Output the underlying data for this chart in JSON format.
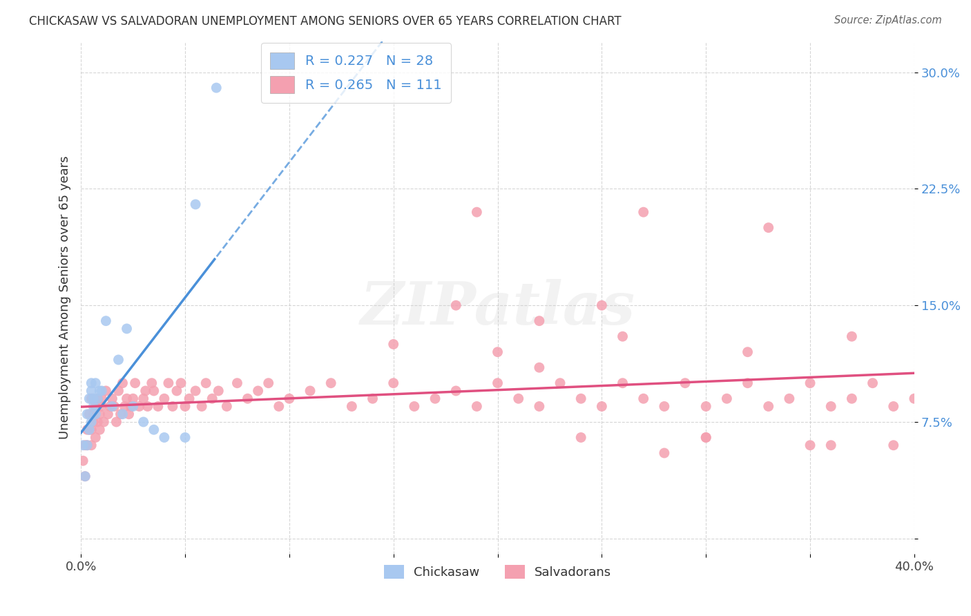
{
  "title": "CHICKASAW VS SALVADORAN UNEMPLOYMENT AMONG SENIORS OVER 65 YEARS CORRELATION CHART",
  "source": "Source: ZipAtlas.com",
  "ylabel": "Unemployment Among Seniors over 65 years",
  "xlim": [
    0.0,
    0.4
  ],
  "ylim": [
    -0.01,
    0.32
  ],
  "legend_label1": "R = 0.227   N = 28",
  "legend_label2": "R = 0.265   N = 111",
  "legend_bottom_label1": "Chickasaw",
  "legend_bottom_label2": "Salvadorans",
  "color_blue": "#a8c8f0",
  "color_pink": "#f4a0b0",
  "line_color_blue": "#4a90d9",
  "line_color_pink": "#e05080",
  "watermark": "ZIPatlas",
  "background_color": "#ffffff",
  "grid_color": "#cccccc",
  "yticks": [
    0.0,
    0.075,
    0.15,
    0.225,
    0.3
  ],
  "ytick_labels": [
    "",
    "7.5%",
    "15.0%",
    "22.5%",
    "30.0%"
  ],
  "xtick_positions": [
    0.0,
    0.05,
    0.1,
    0.15,
    0.2,
    0.25,
    0.3,
    0.35,
    0.4
  ],
  "xtick_labels": [
    "0.0%",
    "",
    "",
    "",
    "",
    "",
    "",
    "",
    "40.0%"
  ],
  "chickasaw_x": [
    0.001,
    0.002,
    0.003,
    0.003,
    0.004,
    0.004,
    0.005,
    0.005,
    0.005,
    0.006,
    0.006,
    0.007,
    0.007,
    0.008,
    0.009,
    0.01,
    0.012,
    0.015,
    0.018,
    0.02,
    0.022,
    0.025,
    0.03,
    0.035,
    0.04,
    0.05,
    0.055,
    0.065
  ],
  "chickasaw_y": [
    0.06,
    0.04,
    0.06,
    0.08,
    0.07,
    0.09,
    0.075,
    0.095,
    0.1,
    0.085,
    0.09,
    0.08,
    0.1,
    0.09,
    0.095,
    0.095,
    0.14,
    0.085,
    0.115,
    0.08,
    0.135,
    0.085,
    0.075,
    0.07,
    0.065,
    0.065,
    0.215,
    0.29
  ],
  "salvadoran_x": [
    0.001,
    0.002,
    0.002,
    0.003,
    0.003,
    0.004,
    0.004,
    0.005,
    0.005,
    0.005,
    0.006,
    0.006,
    0.007,
    0.007,
    0.008,
    0.008,
    0.009,
    0.009,
    0.01,
    0.01,
    0.011,
    0.012,
    0.013,
    0.014,
    0.015,
    0.016,
    0.017,
    0.018,
    0.019,
    0.02,
    0.021,
    0.022,
    0.023,
    0.024,
    0.025,
    0.026,
    0.028,
    0.03,
    0.031,
    0.032,
    0.034,
    0.035,
    0.037,
    0.04,
    0.042,
    0.044,
    0.046,
    0.048,
    0.05,
    0.052,
    0.055,
    0.058,
    0.06,
    0.063,
    0.066,
    0.07,
    0.075,
    0.08,
    0.085,
    0.09,
    0.095,
    0.1,
    0.11,
    0.12,
    0.13,
    0.14,
    0.15,
    0.16,
    0.17,
    0.18,
    0.19,
    0.2,
    0.21,
    0.22,
    0.23,
    0.24,
    0.25,
    0.26,
    0.27,
    0.28,
    0.29,
    0.3,
    0.31,
    0.32,
    0.33,
    0.34,
    0.35,
    0.36,
    0.37,
    0.38,
    0.39,
    0.4,
    0.15,
    0.18,
    0.2,
    0.22,
    0.24,
    0.27,
    0.3,
    0.33,
    0.35,
    0.37,
    0.39,
    0.25,
    0.28,
    0.32,
    0.36,
    0.19,
    0.22,
    0.26,
    0.3
  ],
  "salvadoran_y": [
    0.05,
    0.04,
    0.06,
    0.07,
    0.06,
    0.08,
    0.07,
    0.09,
    0.06,
    0.07,
    0.08,
    0.075,
    0.065,
    0.085,
    0.075,
    0.09,
    0.07,
    0.08,
    0.085,
    0.09,
    0.075,
    0.095,
    0.08,
    0.085,
    0.09,
    0.085,
    0.075,
    0.095,
    0.08,
    0.1,
    0.085,
    0.09,
    0.08,
    0.085,
    0.09,
    0.1,
    0.085,
    0.09,
    0.095,
    0.085,
    0.1,
    0.095,
    0.085,
    0.09,
    0.1,
    0.085,
    0.095,
    0.1,
    0.085,
    0.09,
    0.095,
    0.085,
    0.1,
    0.09,
    0.095,
    0.085,
    0.1,
    0.09,
    0.095,
    0.1,
    0.085,
    0.09,
    0.095,
    0.1,
    0.085,
    0.09,
    0.1,
    0.085,
    0.09,
    0.095,
    0.085,
    0.1,
    0.09,
    0.085,
    0.1,
    0.09,
    0.085,
    0.1,
    0.09,
    0.085,
    0.1,
    0.085,
    0.09,
    0.1,
    0.085,
    0.09,
    0.1,
    0.085,
    0.09,
    0.1,
    0.085,
    0.09,
    0.125,
    0.15,
    0.12,
    0.11,
    0.065,
    0.21,
    0.065,
    0.2,
    0.06,
    0.13,
    0.06,
    0.15,
    0.055,
    0.12,
    0.06,
    0.21,
    0.14,
    0.13,
    0.065
  ]
}
